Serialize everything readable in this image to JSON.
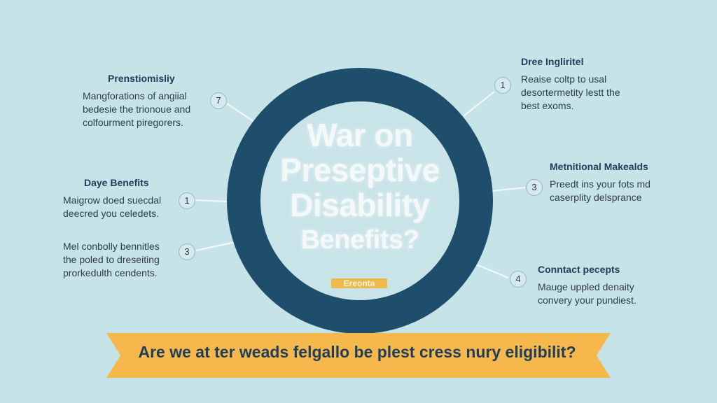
{
  "colors": {
    "background": "#c6e3e8",
    "ring": "#1f4e6d",
    "ring_inner": "#c9e4e9",
    "banner": "#f6b84c",
    "heading_text": "#1f3e57"
  },
  "center": {
    "line1": "War on",
    "line2": "Preseptive",
    "line3": "Disability",
    "line4": "Benefits?",
    "tag": "Ereonta"
  },
  "left_items": [
    {
      "number": "7",
      "title": "Prenstiomisliy",
      "lines": [
        "Mangforations of angiial",
        "bedesie the trionoue and",
        "colfourment piregorers."
      ]
    },
    {
      "number": "1",
      "title": "Daye Benefits",
      "lines": [
        "Maigrow doed suecdal",
        "deecred you celedets."
      ]
    },
    {
      "number": "3",
      "title": "",
      "lines": [
        "Mel conbolly bennitles",
        "the poled to dreseiting",
        "prorkedulth cendents."
      ]
    }
  ],
  "right_items": [
    {
      "number": "1",
      "title": "Dree Ingliritel",
      "lines": [
        "Reaise coltp to usal",
        "desortermetity lestt the",
        "best exoms."
      ]
    },
    {
      "number": "3",
      "title": "Metnitional Makealds",
      "lines": [
        "Preedt ins your fots md",
        "caserplity delsprance"
      ]
    },
    {
      "number": "4",
      "title": "Conntact pecepts",
      "lines": [
        "Mauge uppled denaity",
        "convery your pundiest."
      ]
    }
  ],
  "banner": {
    "text": "Are we at ter weads felgallo be plest cress nury eligibilit?"
  }
}
